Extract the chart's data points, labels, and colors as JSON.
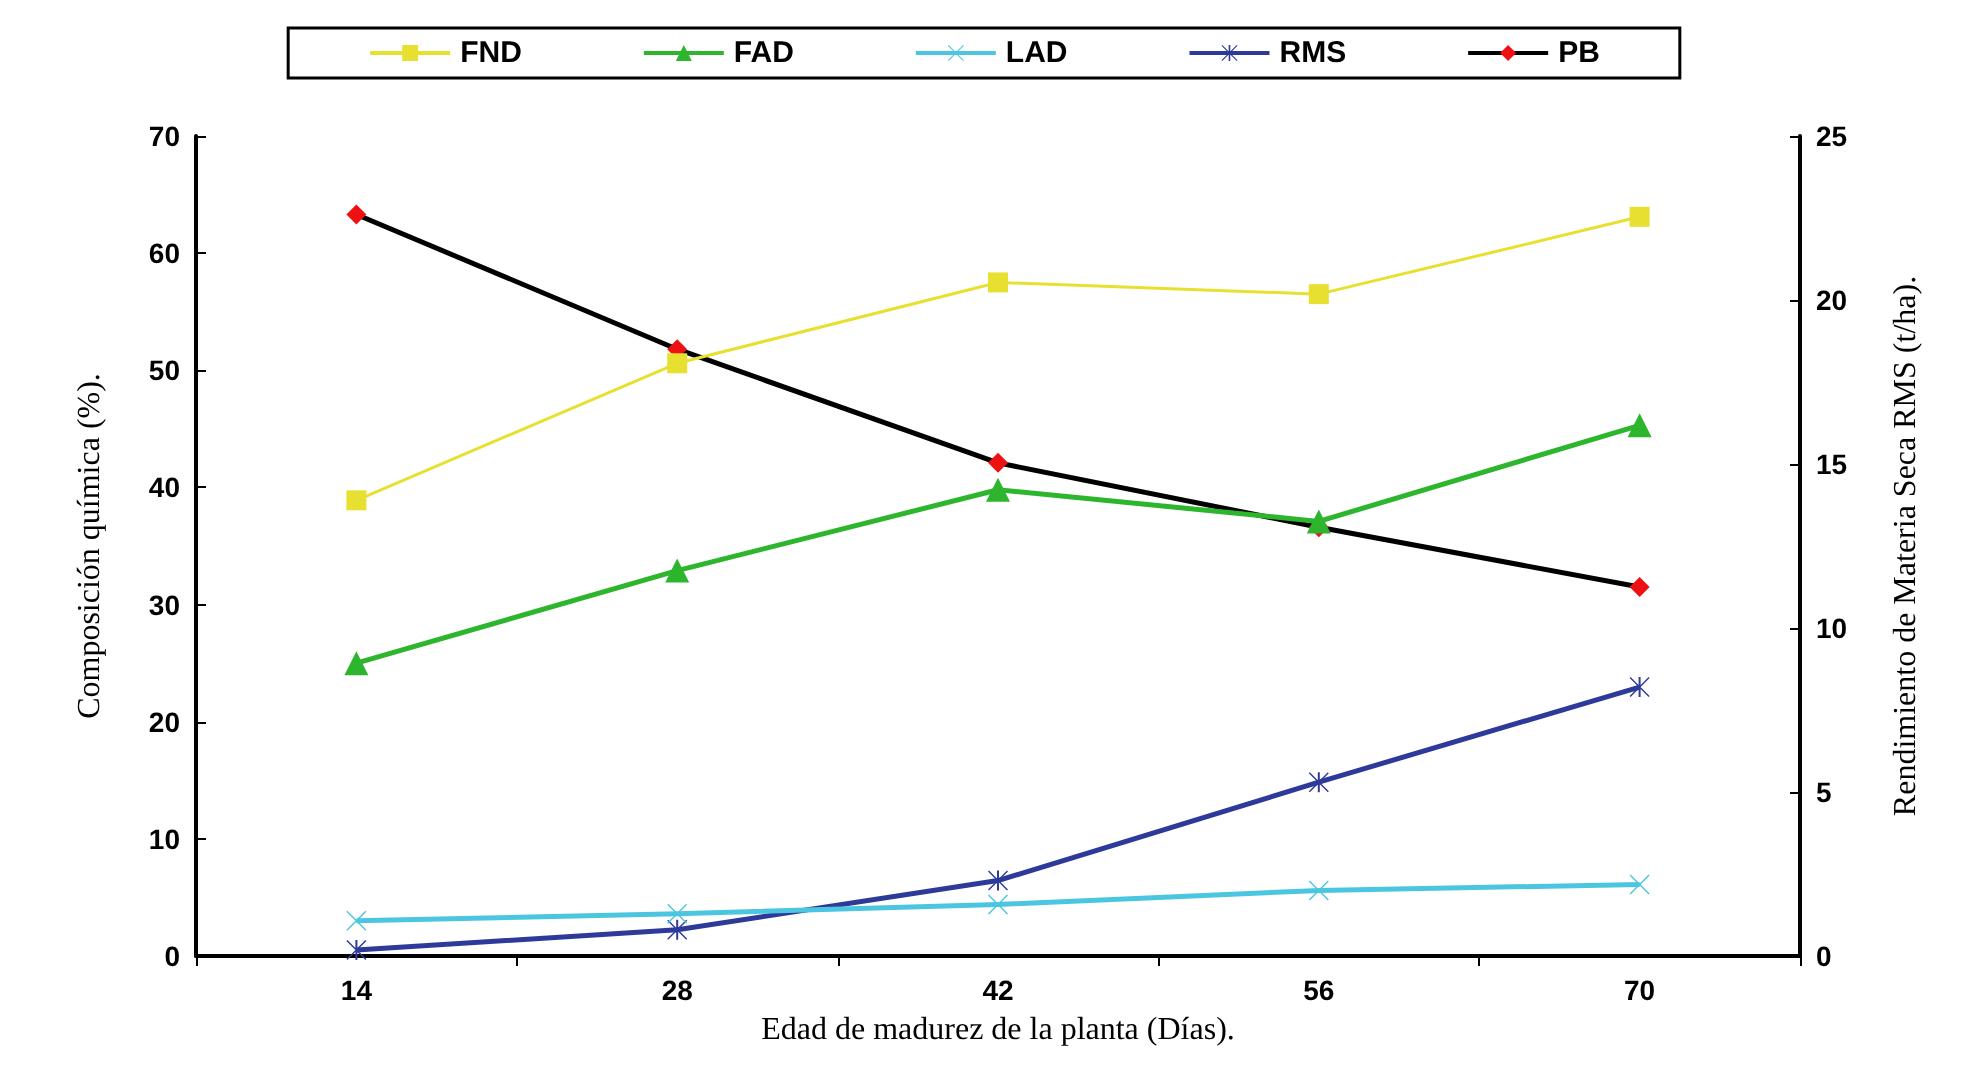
{
  "chart_data": {
    "type": "line",
    "xlabel": "Edad de madurez de la planta (Días).",
    "ylabel": "Composición química (%).",
    "y2label": "Rendimiento de Materia Seca RMS (t/ha).",
    "categories": [
      "14",
      "28",
      "42",
      "56",
      "70"
    ],
    "ylim": [
      0,
      70
    ],
    "yticks": [
      0,
      10,
      20,
      30,
      40,
      50,
      60,
      70
    ],
    "y2lim": [
      0,
      25
    ],
    "y2ticks": [
      0,
      5,
      10,
      15,
      20,
      25
    ],
    "grid": false,
    "legend": "top",
    "series": [
      {
        "name": "FND",
        "color": "#e8e030",
        "marker": "square",
        "values": [
          38.9,
          50.6,
          57.5,
          56.5,
          63.1
        ]
      },
      {
        "name": "FAD",
        "color": "#2db52d",
        "marker": "triangle",
        "values": [
          25.0,
          32.9,
          39.8,
          37.1,
          45.3
        ]
      },
      {
        "name": "LAD",
        "color": "#4cc6e0",
        "marker": "cross",
        "values": [
          3.0,
          3.6,
          4.4,
          5.6,
          6.1
        ]
      },
      {
        "name": "RMS",
        "color": "#2e3a9a",
        "marker": "star",
        "axis": "y2",
        "values": [
          0.18,
          0.8,
          2.3,
          5.3,
          8.2
        ]
      },
      {
        "name": "PB",
        "color": "#000000",
        "colors": [
          "#ee1111",
          "#ee1111",
          "#ee1111",
          "#ee1111",
          "#ee1111"
        ],
        "marker": "diamond",
        "values": [
          63.3,
          51.8,
          42.1,
          36.6,
          31.5
        ]
      }
    ]
  }
}
